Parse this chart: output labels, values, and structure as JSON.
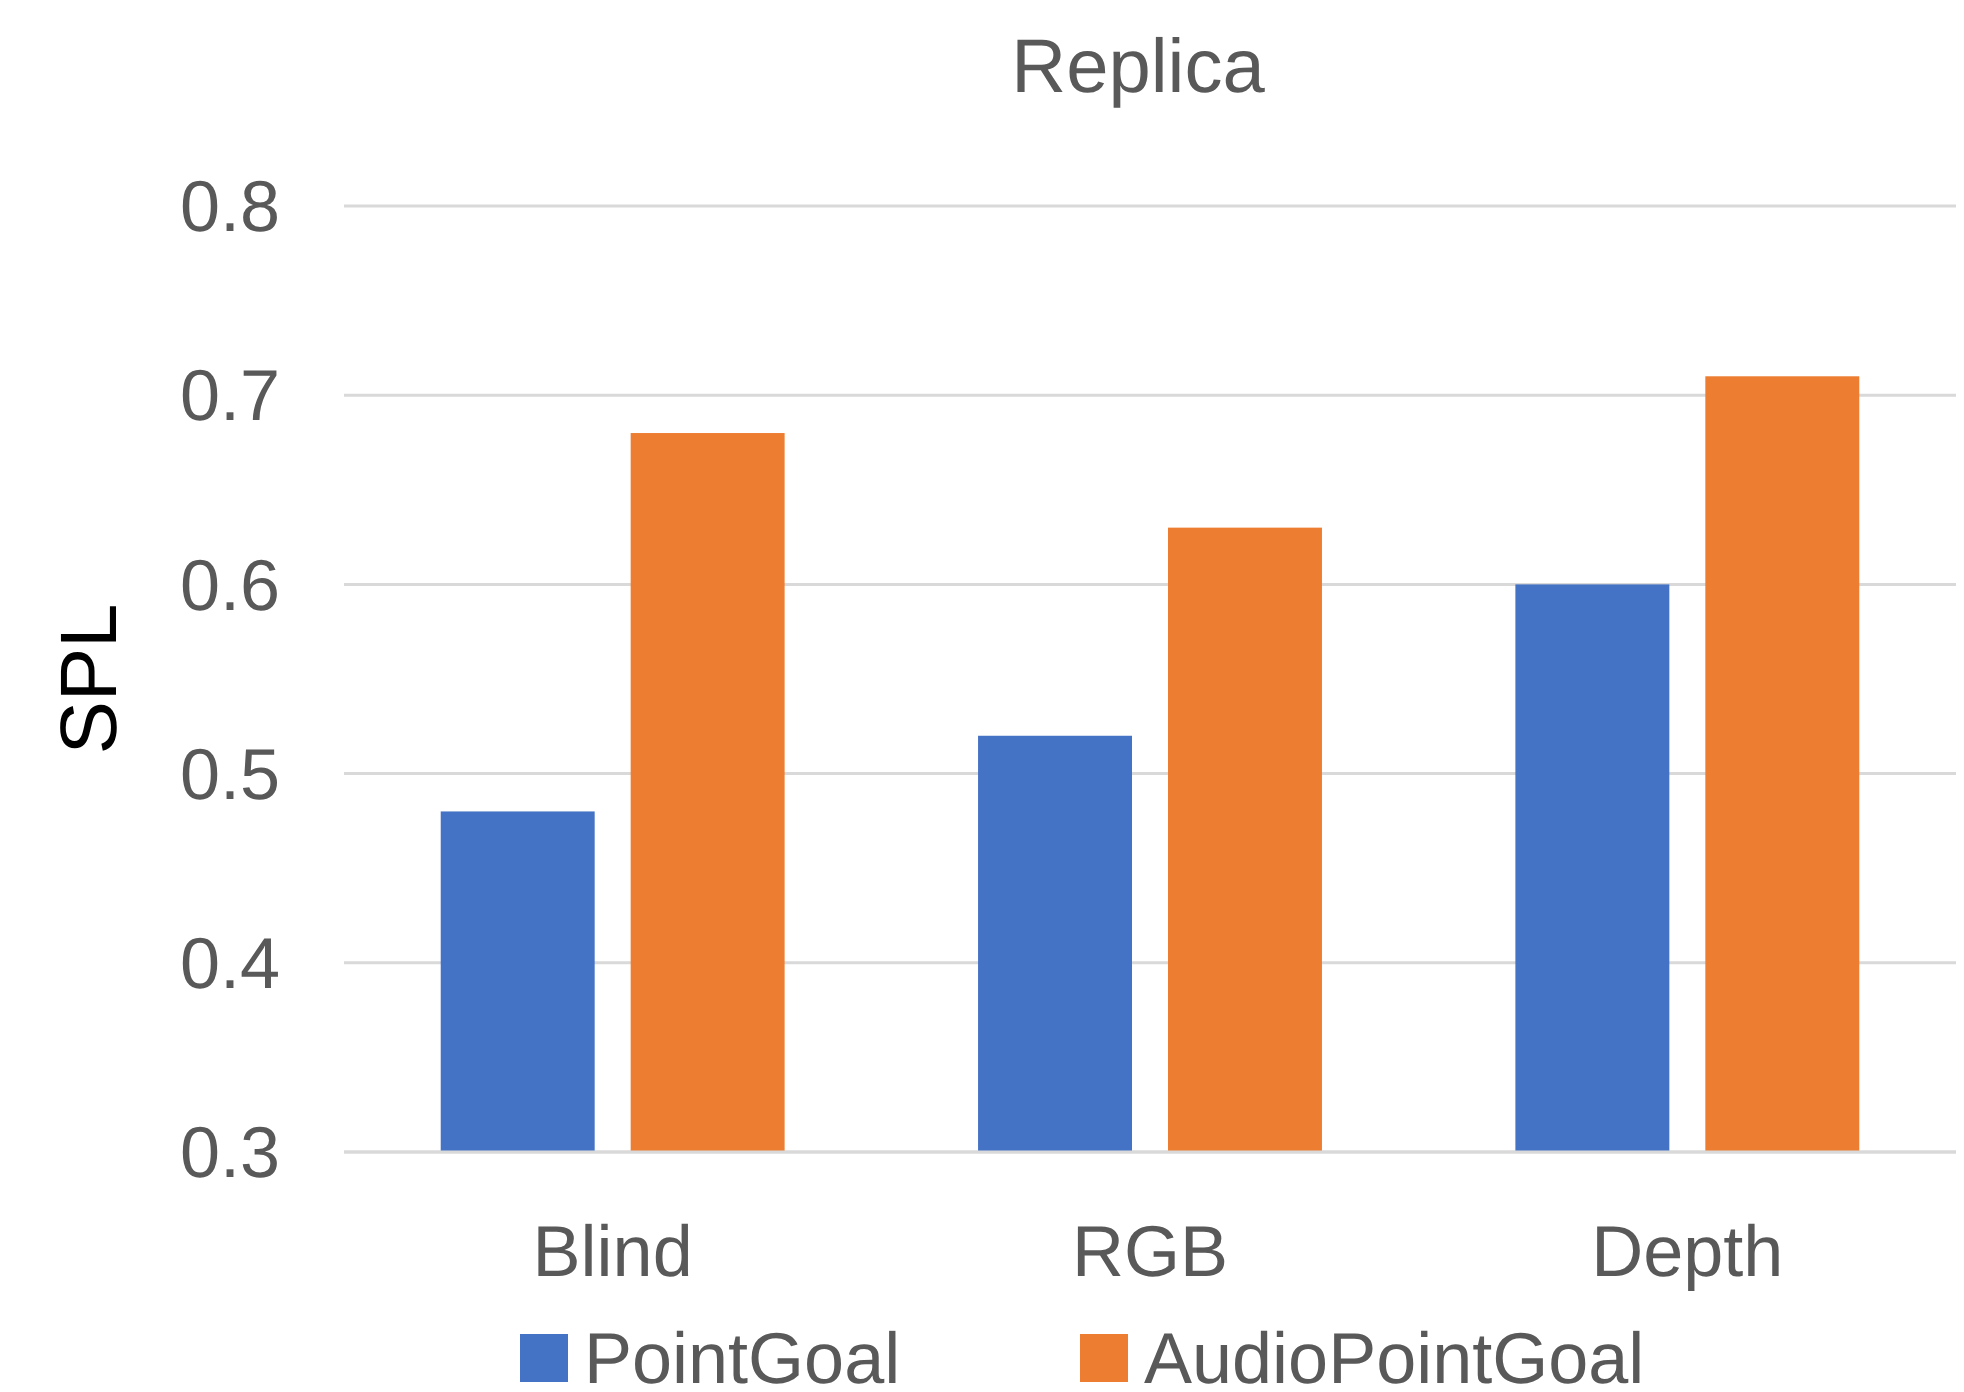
{
  "chart_data": {
    "type": "bar",
    "title": "Replica",
    "ylabel": "SPL",
    "categories": [
      "Blind",
      "RGB",
      "Depth"
    ],
    "series": [
      {
        "name": "PointGoal",
        "color": "#4472c4",
        "values": [
          0.48,
          0.52,
          0.6
        ]
      },
      {
        "name": "AudioPointGoal",
        "color": "#ed7d31",
        "values": [
          0.68,
          0.63,
          0.71
        ]
      }
    ],
    "ylim": [
      0.3,
      0.8
    ],
    "yticks": [
      0.3,
      0.4,
      0.5,
      0.6,
      0.7,
      0.8
    ],
    "grid": "y",
    "legend": "bottom"
  }
}
